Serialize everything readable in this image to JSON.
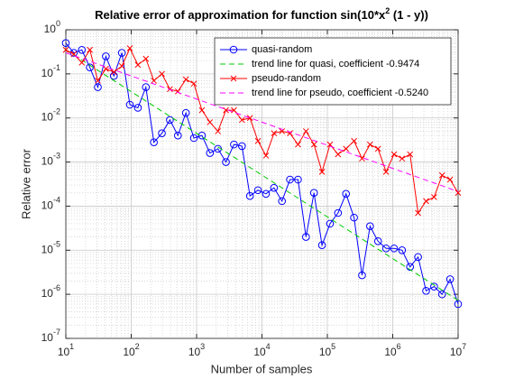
{
  "chart_data": {
    "type": "line",
    "title": [
      "Relative error of approximation for function sin(10*x",
      "2",
      " (1 - y))"
    ],
    "xlabel": "Number of samples",
    "ylabel": "Relative error",
    "log_x": true,
    "log_y": true,
    "grid": true,
    "minor_grid": true,
    "legend": "upper right",
    "xlim": [
      10,
      10000000
    ],
    "ylim": [
      1e-07,
      1
    ],
    "xticks": [
      {
        "value": 10,
        "label": "10^1"
      },
      {
        "value": 100,
        "label": "10^2"
      },
      {
        "value": 1000,
        "label": "10^3"
      },
      {
        "value": 10000,
        "label": "10^4"
      },
      {
        "value": 100000,
        "label": "10^5"
      },
      {
        "value": 1000000,
        "label": "10^6"
      },
      {
        "value": 10000000,
        "label": "10^7"
      }
    ],
    "yticks": [
      {
        "value": 1e-07,
        "label": "10^-7"
      },
      {
        "value": 1e-06,
        "label": "10^-6"
      },
      {
        "value": 1e-05,
        "label": "10^-5"
      },
      {
        "value": 0.0001,
        "label": "10^-4"
      },
      {
        "value": 0.001,
        "label": "10^-3"
      },
      {
        "value": 0.01,
        "label": "10^-2"
      },
      {
        "value": 0.1,
        "label": "10^-1"
      },
      {
        "value": 1,
        "label": "10^0"
      }
    ],
    "x": [
      10,
      13.26,
      17.58,
      23.3,
      30.89,
      40.95,
      54.29,
      71.97,
      95.41,
      126.5,
      167.7,
      222.3,
      294.7,
      390.7,
      517.9,
      686.6,
      910.2,
      1207,
      1600,
      2121,
      2812,
      3728,
      4942,
      6551,
      8685,
      11514,
      15264,
      20235,
      26827,
      35565,
      47149,
      62506,
      82864,
      109854,
      145635,
      193070,
      255955,
      339322,
      449843,
      596362,
      790604,
      1048113,
      1389495,
      1842069,
      2442053,
      3237458,
      4291934,
      5689866,
      7543120,
      10000000
    ],
    "series": [
      {
        "name": "quasi-random",
        "color": "#0000ff",
        "marker": "o",
        "values": [
          0.5,
          0.3,
          0.35,
          0.14,
          0.05,
          0.25,
          0.09,
          0.3,
          0.02,
          0.017,
          0.05,
          0.0028,
          0.0045,
          0.009,
          0.004,
          0.013,
          0.0035,
          0.004,
          0.0016,
          0.002,
          0.001,
          0.0025,
          0.0023,
          0.00017,
          0.00023,
          0.00019,
          0.00026,
          0.00013,
          0.0004,
          0.0004,
          2e-05,
          0.0002,
          1.3e-05,
          4e-05,
          7e-05,
          0.00019,
          5.5e-05,
          2.7e-06,
          3.5e-05,
          1.6e-05,
          1.1e-05,
          1.1e-05,
          1e-05,
          4.2e-06,
          7e-06,
          1.2e-06,
          1.5e-06,
          1e-06,
          2.2e-06,
          6e-07
        ]
      },
      {
        "name": "trend line for quasi, coefficient -0.9474",
        "color": "#00cc00",
        "style": "dashed",
        "x": [
          10,
          10000000
        ],
        "values": [
          0.35,
          7.3e-07
        ]
      },
      {
        "name": "pseudo-random",
        "color": "#ff0000",
        "marker": "x",
        "values": [
          0.35,
          0.28,
          0.18,
          0.35,
          0.07,
          0.13,
          0.11,
          0.15,
          0.38,
          0.16,
          0.22,
          0.07,
          0.1,
          0.045,
          0.04,
          0.075,
          0.06,
          0.015,
          0.008,
          0.005,
          0.015,
          0.015,
          0.009,
          0.01,
          0.003,
          0.0014,
          0.0045,
          0.005,
          0.0045,
          0.0025,
          0.005,
          0.0025,
          0.0006,
          0.0025,
          0.0015,
          0.002,
          0.003,
          0.0012,
          0.0025,
          0.002,
          0.0006,
          0.0015,
          0.0012,
          0.0015,
          7e-05,
          0.00013,
          0.00016,
          0.0005,
          0.0004,
          0.0002
        ]
      },
      {
        "name": "trend line for pseudo, coefficient -0.5240",
        "color": "#ff00ff",
        "style": "dashed",
        "x": [
          10,
          10000000
        ],
        "values": [
          0.3,
          0.000215
        ]
      }
    ]
  }
}
